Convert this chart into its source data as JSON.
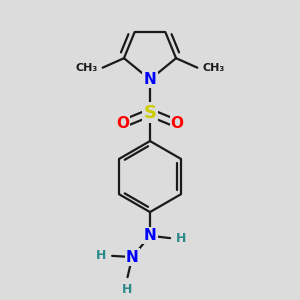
{
  "background_color": "#dcdcdc",
  "bond_color": "#1a1a1a",
  "bond_width": 1.6,
  "atom_colors": {
    "N": "#0000ff",
    "S": "#cccc00",
    "O": "#ff0000",
    "C": "#1a1a1a",
    "H": "#2a8a8a"
  },
  "figsize": [
    3.0,
    3.0
  ],
  "dpi": 100
}
